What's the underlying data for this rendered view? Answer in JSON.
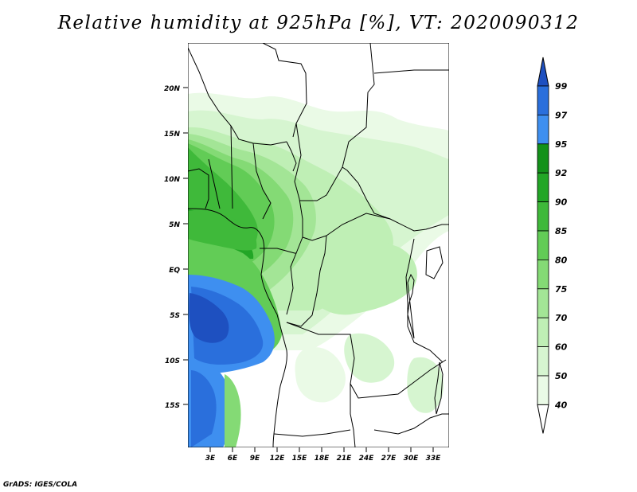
{
  "title": "Relative humidity at 925hPa [%], VT: 2020090312",
  "footer": "GrADS: IGES/COLA",
  "map": {
    "lat_labels": [
      "20N",
      "15N",
      "10N",
      "5N",
      "EQ",
      "5S",
      "10S",
      "15S"
    ],
    "lon_labels": [
      "3E",
      "6E",
      "9E",
      "12E",
      "15E",
      "18E",
      "21E",
      "24E",
      "27E",
      "30E",
      "33E"
    ]
  },
  "colorbar": {
    "levels": [
      "40",
      "50",
      "60",
      "70",
      "75",
      "80",
      "85",
      "90",
      "92",
      "95",
      "97",
      "99"
    ],
    "colors": {
      "lt40": "#ffffff",
      "40-50": "#eafae6",
      "50-60": "#d6f5d0",
      "60-70": "#bfefb5",
      "70-75": "#a3e596",
      "75-80": "#84da75",
      "80-85": "#62cc56",
      "85-90": "#3fb93a",
      "90-92": "#22a626",
      "92-95": "#13911a",
      "95-97": "#3e8ff0",
      "97-99": "#2a6fdc",
      "gt99": "#1e50c0"
    }
  },
  "fields": {
    "colors": {
      "g1": "#eafae6",
      "g2": "#d6f5d0",
      "g3": "#bfefb5",
      "g4": "#a3e596",
      "g5": "#84da75",
      "g6": "#62cc56",
      "g7": "#3fb93a",
      "g8": "#22a626",
      "b1": "#3e8ff0",
      "b2": "#2a6fdc",
      "b3": "#1e50c0"
    }
  }
}
